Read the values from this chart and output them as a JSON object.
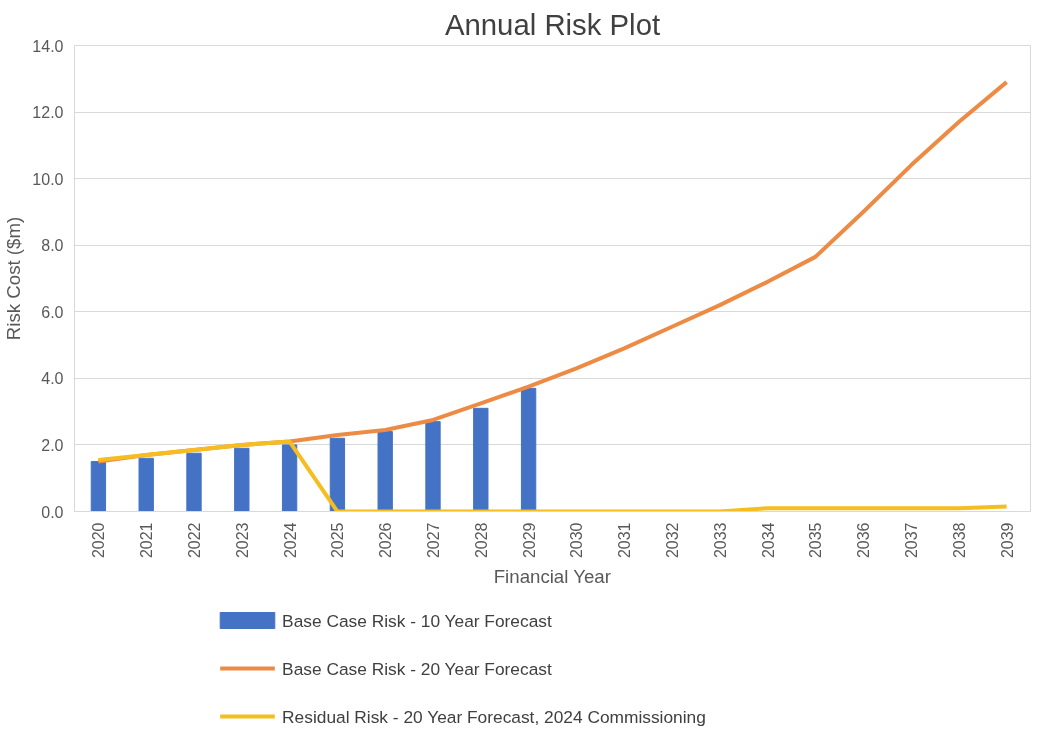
{
  "chart_data": {
    "type": "bar",
    "title": "Annual Risk Plot",
    "xlabel": "Financial Year",
    "ylabel": "Risk Cost ($m)",
    "categories": [
      "2020",
      "2021",
      "2022",
      "2023",
      "2024",
      "2025",
      "2026",
      "2027",
      "2028",
      "2029",
      "2030",
      "2031",
      "2032",
      "2033",
      "2034",
      "2035",
      "2036",
      "2037",
      "2038",
      "2039"
    ],
    "series": [
      {
        "name": "Base Case Risk - 10 Year Forecast",
        "type": "bar",
        "color": "#4472c4",
        "values": [
          1.5,
          1.6,
          1.75,
          1.9,
          2.0,
          2.2,
          2.4,
          2.7,
          3.1,
          3.7,
          null,
          null,
          null,
          null,
          null,
          null,
          null,
          null,
          null,
          null
        ]
      },
      {
        "name": "Base Case Risk - 20 Year Forecast",
        "type": "line",
        "color": "#ed8b45",
        "values": [
          1.5,
          1.7,
          1.85,
          2.0,
          2.1,
          2.3,
          2.45,
          2.75,
          3.25,
          3.75,
          4.3,
          4.9,
          5.55,
          6.2,
          6.9,
          7.65,
          9.0,
          10.4,
          11.7,
          12.9
        ]
      },
      {
        "name": "Residual Risk - 20 Year Forecast, 2024 Commissioning",
        "type": "line",
        "color": "#f5bd1f",
        "values": [
          1.55,
          1.7,
          1.85,
          2.0,
          2.1,
          0.0,
          0.0,
          0.0,
          0.0,
          0.0,
          0.0,
          0.0,
          0.0,
          0.0,
          0.1,
          0.1,
          0.1,
          0.1,
          0.1,
          0.15
        ]
      }
    ],
    "ylim": [
      0,
      14
    ],
    "yticks": [
      {
        "value": 0,
        "label": "0.0"
      },
      {
        "value": 2,
        "label": "2.0"
      },
      {
        "value": 4,
        "label": "4.0"
      },
      {
        "value": 6,
        "label": "6.0"
      },
      {
        "value": 8,
        "label": "8.0"
      },
      {
        "value": 10,
        "label": "10.0"
      },
      {
        "value": 12,
        "label": "12.0"
      },
      {
        "value": 14,
        "label": "14.0"
      }
    ],
    "grid": "y",
    "legend": "bottom"
  }
}
